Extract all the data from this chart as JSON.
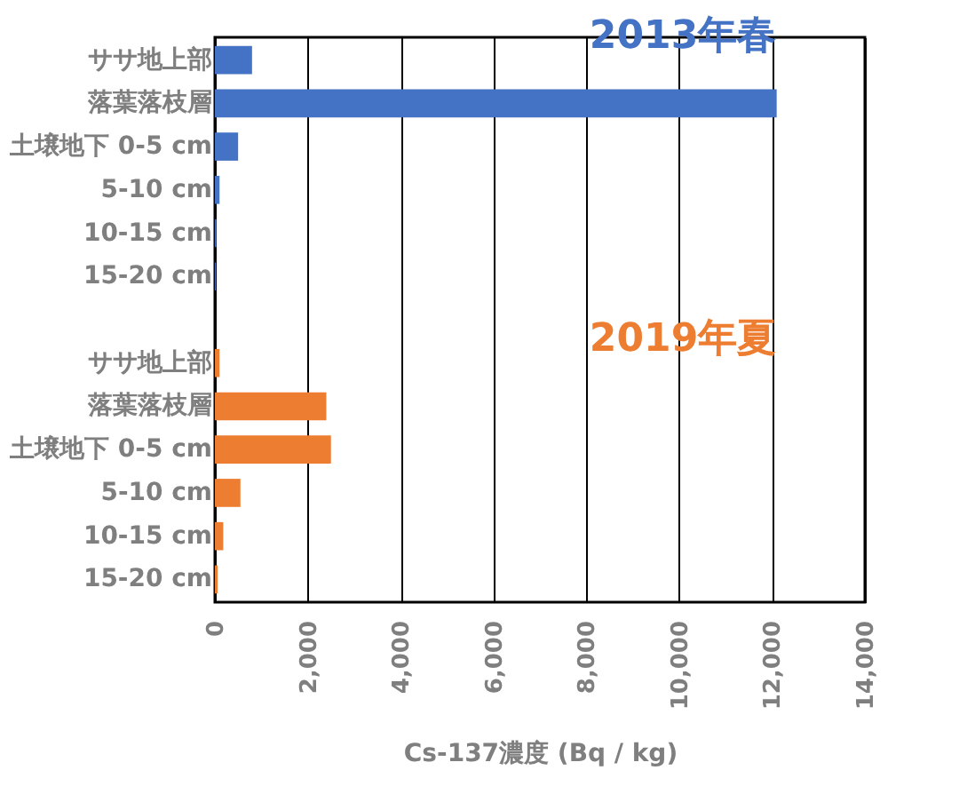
{
  "chart_data": {
    "type": "bar",
    "orientation": "horizontal",
    "xlabel": "Cs-137濃度  (Bq / kg)",
    "categories": [
      "ササ地上部",
      "落葉落枝層",
      "土壌地下 0-5 cm",
      "5-10 cm",
      "10-15 cm",
      "15-20 cm",
      null,
      "ササ地上部",
      "落葉落枝層",
      "土壌地下 0-5 cm",
      "5-10 cm",
      "10-15 cm",
      "15-20 cm"
    ],
    "series": [
      {
        "name": "2013年春",
        "color": "#4472c4",
        "values": [
          800,
          12100,
          500,
          100,
          30,
          20,
          null,
          null,
          null,
          null,
          null,
          null,
          null
        ]
      },
      {
        "name": "2019年夏",
        "color": "#ed7d31",
        "values": [
          null,
          null,
          null,
          null,
          null,
          null,
          null,
          100,
          2400,
          2500,
          550,
          180,
          60
        ]
      }
    ],
    "xlim": [
      0,
      14000
    ],
    "xticks": [
      0,
      {
        "value": 2000,
        "label": "2,000"
      },
      {
        "value": 4000,
        "label": "4,000"
      },
      {
        "value": 6000,
        "label": "6,000"
      },
      {
        "value": 8000,
        "label": "8,000"
      },
      {
        "value": 10000,
        "label": "10,000"
      },
      {
        "value": 12000,
        "label": "12,000"
      },
      {
        "value": 14000,
        "label": "14,000"
      }
    ],
    "grid": "x"
  }
}
